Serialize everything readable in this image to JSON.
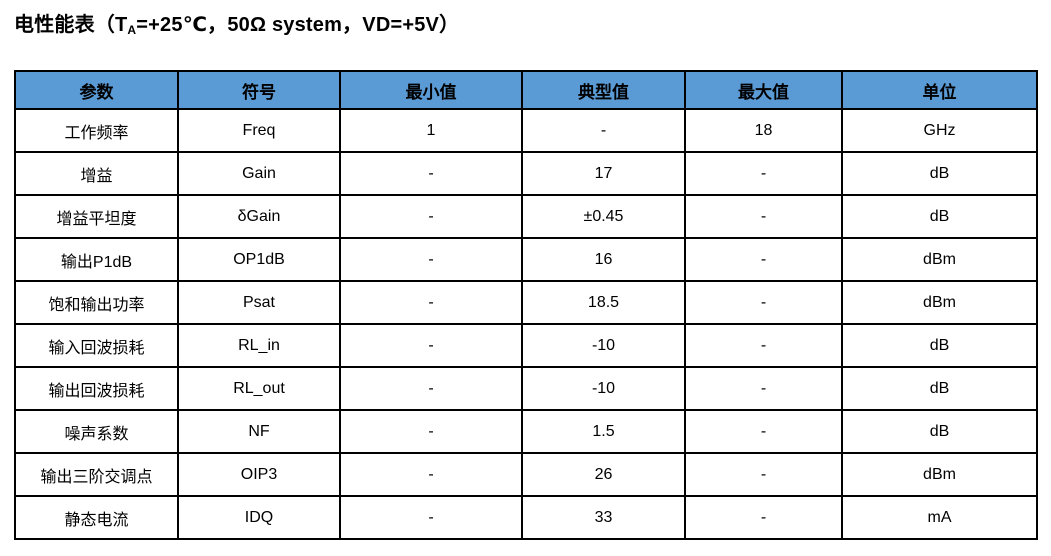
{
  "title": {
    "prefix": "电性能表（T",
    "subscript": "A",
    "suffix": "=+25℃，50Ω system，VD=+5V）"
  },
  "colors": {
    "header_bg": "#5B9BD5",
    "border": "#000000",
    "text": "#000000"
  },
  "table": {
    "headers": [
      "参数",
      "符号",
      "最小值",
      "典型值",
      "最大值",
      "单位"
    ],
    "column_names": [
      "param-cell",
      "symbol-cell",
      "min-cell",
      "typical-cell",
      "max-cell",
      "unit-cell"
    ],
    "rows": [
      {
        "cells": [
          "工作频率",
          "Freq",
          "1",
          "-",
          "18",
          "GHz"
        ]
      },
      {
        "cells": [
          "增益",
          "Gain",
          "-",
          "17",
          "-",
          "dB"
        ]
      },
      {
        "cells": [
          "增益平坦度",
          "δGain",
          "-",
          "±0.45",
          "-",
          "dB"
        ]
      },
      {
        "cells": [
          "输出P1dB",
          "OP1dB",
          "-",
          "16",
          "-",
          "dBm"
        ]
      },
      {
        "cells": [
          "饱和输出功率",
          "Psat",
          "-",
          "18.5",
          "-",
          "dBm"
        ]
      },
      {
        "cells": [
          "输入回波损耗",
          "RL_in",
          "-",
          "-10",
          "-",
          "dB"
        ]
      },
      {
        "cells": [
          "输出回波损耗",
          "RL_out",
          "-",
          "-10",
          "-",
          "dB"
        ]
      },
      {
        "cells": [
          "噪声系数",
          "NF",
          "-",
          "1.5",
          "-",
          "dB"
        ]
      },
      {
        "cells": [
          "输出三阶交调点",
          "OIP3",
          "-",
          "26",
          "-",
          "dBm"
        ]
      },
      {
        "cells": [
          "静态电流",
          "IDQ",
          "-",
          "33",
          "-",
          "mA"
        ]
      }
    ]
  }
}
